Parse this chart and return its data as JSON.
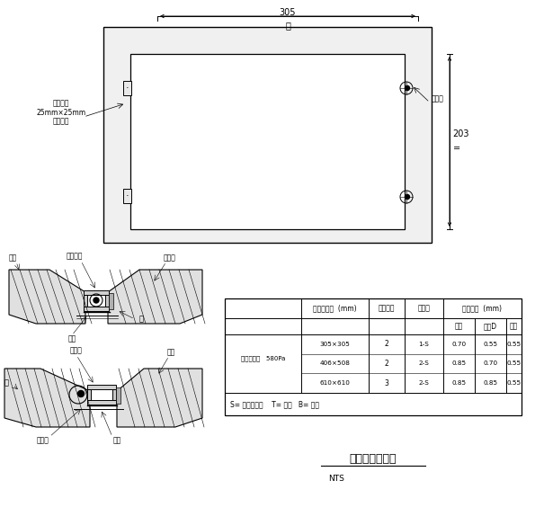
{
  "bg_color": "#ffffff",
  "line_color": "#000000",
  "title": "风管检修门详图",
  "subtitle": "NTS",
  "top_dim_text": "305",
  "top_dim_label": "门",
  "right_dim_text": "203",
  "right_dim_label": "=",
  "annotation_top_left_1": "刚性框架",
  "annotation_top_left_2": "25mm×25mm",
  "annotation_top_left_3": "成型板钢",
  "annotation_top_right": "密封钢",
  "table_header1": "检修口尺寸  (mm)",
  "table_header2": "铆钉数量",
  "table_header3": "螺栓量",
  "table_header4": "金属厚度  (mm)",
  "table_subheader_a": "龙框",
  "table_subheader_b": "蝶板D",
  "table_subheader_c": "稀薄",
  "table_row_label": "额定不大于   580Pa",
  "table_row1_size": "305×305",
  "table_row2_size": "406×508",
  "table_row3_size": "610×610",
  "table_row1_rivets": "2",
  "table_row2_rivets": "2",
  "table_row3_rivets": "3",
  "table_row1_bolts": "1-S",
  "table_row2_bolts": "2-S",
  "table_row3_bolts": "2-S",
  "table_row1_a": "0.70",
  "table_row1_b": "0.55",
  "table_row1_c": "0.55",
  "table_row2_a": "0.85",
  "table_row2_b": "0.70",
  "table_row2_c": "0.55",
  "table_row3_a": "0.85",
  "table_row3_b": "0.85",
  "table_row3_c": "0.55",
  "table_note": "S= 螺钉及螺栓    T= 上侧   B= 下侧"
}
